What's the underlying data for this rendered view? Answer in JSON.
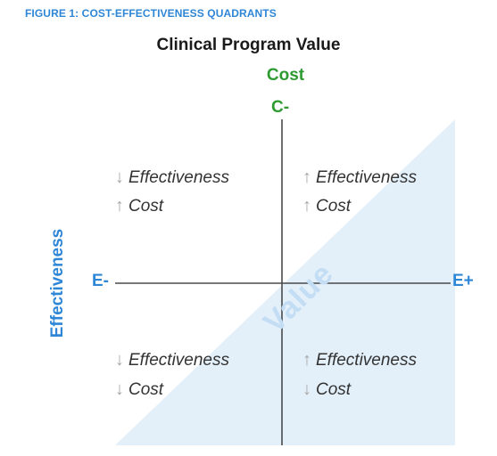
{
  "figure_label": "FIGURE 1: COST-EFFECTIVENESS QUADRANTS",
  "title": "Clinical Program Value",
  "cost_axis_title": "Cost",
  "cost_axis_end": "C-",
  "effectiveness_axis_title": "Effectiveness",
  "effectiveness_negative_end": "E-",
  "effectiveness_positive_end": "E+",
  "value_region_label": "Value",
  "arrow_up": "↑",
  "arrow_down": "↓",
  "colors": {
    "blue_accent": "#2e86d6",
    "green_accent": "#2f9a32",
    "value_region": "#e3eff9",
    "axis_line": "#4a4a4a"
  },
  "quadrants": {
    "top_left": {
      "line1": {
        "direction": "down",
        "text": "Effectiveness"
      },
      "line2": {
        "direction": "up",
        "text": "Cost"
      }
    },
    "top_right": {
      "line1": {
        "direction": "up",
        "text": "Effectiveness"
      },
      "line2": {
        "direction": "up",
        "text": "Cost"
      }
    },
    "bottom_left": {
      "line1": {
        "direction": "down",
        "text": "Effectiveness"
      },
      "line2": {
        "direction": "down",
        "text": "Cost"
      }
    },
    "bottom_right": {
      "line1": {
        "direction": "up",
        "text": "Effectiveness"
      },
      "line2": {
        "direction": "down",
        "text": "Cost"
      }
    }
  }
}
